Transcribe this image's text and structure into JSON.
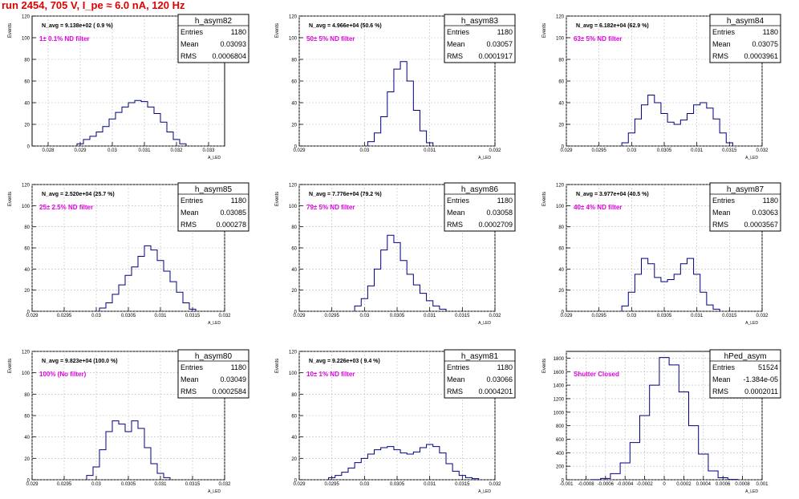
{
  "page_title": "run 2454,   705 V, I_pe ≈ 6.0 nA, 120 Hz",
  "chart_data": [
    {
      "type": "histogram",
      "name": "h_asym82",
      "ylabel": "Events",
      "xlabel": "A_LED",
      "n_avg": "N_avg = 9.138e+02 ( 0.9 %)",
      "filter": "1± 0.1% ND filter",
      "stats": {
        "Entries": "1180",
        "Mean": "0.03093",
        "RMS": "0.0006804"
      },
      "xlim": [
        0.0275,
        0.0335
      ],
      "ylim": [
        0,
        120
      ],
      "xticks": [
        "0.028",
        "0.029",
        "0.03",
        "0.031",
        "0.032",
        "0.033"
      ],
      "yticks": [
        "0",
        "20",
        "40",
        "60",
        "80",
        "100",
        "120"
      ],
      "x": [
        0.029,
        0.0292,
        0.0294,
        0.0296,
        0.0298,
        0.03,
        0.0302,
        0.0304,
        0.0306,
        0.0308,
        0.031,
        0.0312,
        0.0314,
        0.0316,
        0.0318,
        0.032,
        0.0322
      ],
      "values": [
        2,
        6,
        9,
        13,
        18,
        25,
        31,
        36,
        40,
        42,
        41,
        36,
        30,
        22,
        13,
        6,
        2
      ]
    },
    {
      "type": "histogram",
      "name": "h_asym83",
      "ylabel": "Events",
      "xlabel": "A_LED",
      "n_avg": "N_avg = 4.966e+04 (50.6 %)",
      "filter": "50± 5% ND filter",
      "stats": {
        "Entries": "1180",
        "Mean": "0.03057",
        "RMS": "0.0001917"
      },
      "xlim": [
        0.029,
        0.032
      ],
      "ylim": [
        0,
        120
      ],
      "xticks": [
        "0.029",
        "0.03",
        "0.031",
        "0.032"
      ],
      "yticks": [
        "0",
        "20",
        "40",
        "60",
        "80",
        "100",
        "120"
      ],
      "x": [
        0.0301,
        0.0302,
        0.0303,
        0.0304,
        0.0305,
        0.0306,
        0.0307,
        0.0308,
        0.0309,
        0.031
      ],
      "values": [
        4,
        12,
        27,
        50,
        71,
        78,
        60,
        33,
        14,
        3
      ]
    },
    {
      "type": "histogram",
      "name": "h_asym84",
      "ylabel": "Events",
      "xlabel": "A_LED",
      "n_avg": "N_avg = 6.182e+04 (62.9 %)",
      "filter": "63± 5% ND filter",
      "stats": {
        "Entries": "1180",
        "Mean": "0.03075",
        "RMS": "0.0003961"
      },
      "xlim": [
        0.029,
        0.032
      ],
      "ylim": [
        0,
        120
      ],
      "xticks": [
        "0.029",
        "0.0295",
        "0.03",
        "0.0305",
        "0.031",
        "0.0315",
        "0.032"
      ],
      "yticks": [
        "0",
        "20",
        "40",
        "60",
        "80",
        "100",
        "120"
      ],
      "x": [
        0.0299,
        0.03,
        0.0301,
        0.0302,
        0.0303,
        0.0304,
        0.0305,
        0.0306,
        0.0307,
        0.0308,
        0.0309,
        0.031,
        0.0311,
        0.0312,
        0.0313,
        0.0314,
        0.0315
      ],
      "values": [
        3,
        12,
        25,
        38,
        47,
        40,
        30,
        22,
        20,
        24,
        30,
        38,
        40,
        35,
        25,
        12,
        3
      ]
    },
    {
      "type": "histogram",
      "name": "h_asym85",
      "ylabel": "Events",
      "xlabel": "A_LED",
      "n_avg": "N_avg = 2.520e+04 (25.7 %)",
      "filter": "25± 2.5% ND filter",
      "stats": {
        "Entries": "1180",
        "Mean": "0.03085",
        "RMS": "0.000278"
      },
      "xlim": [
        0.029,
        0.032
      ],
      "ylim": [
        0,
        120
      ],
      "xticks": [
        "0.029",
        "0.0295",
        "0.03",
        "0.0305",
        "0.031",
        "0.0315",
        "0.032"
      ],
      "yticks": [
        "0",
        "20",
        "40",
        "60",
        "80",
        "100",
        "120"
      ],
      "x": [
        0.0301,
        0.0302,
        0.0303,
        0.0304,
        0.0305,
        0.0306,
        0.0307,
        0.0308,
        0.0309,
        0.031,
        0.0311,
        0.0312,
        0.0313,
        0.0314,
        0.0315
      ],
      "values": [
        3,
        8,
        16,
        25,
        34,
        42,
        52,
        62,
        58,
        48,
        38,
        28,
        18,
        8,
        2
      ]
    },
    {
      "type": "histogram",
      "name": "h_asym86",
      "ylabel": "Events",
      "xlabel": "A_LED",
      "n_avg": "N_avg = 7.776e+04 (79.2 %)",
      "filter": "79± 5% ND filter",
      "stats": {
        "Entries": "1180",
        "Mean": "0.03058",
        "RMS": "0.0002709"
      },
      "xlim": [
        0.029,
        0.032
      ],
      "ylim": [
        0,
        120
      ],
      "xticks": [
        "0.029",
        "0.0295",
        "0.03",
        "0.0305",
        "0.031",
        "0.0315",
        "0.032"
      ],
      "yticks": [
        "0",
        "20",
        "40",
        "60",
        "80",
        "100",
        "120"
      ],
      "x": [
        0.0299,
        0.03,
        0.0301,
        0.0302,
        0.0303,
        0.0304,
        0.0305,
        0.0306,
        0.0307,
        0.0308,
        0.0309,
        0.031,
        0.0311,
        0.0312
      ],
      "values": [
        5,
        12,
        24,
        40,
        58,
        72,
        65,
        48,
        35,
        25,
        17,
        10,
        5,
        2
      ]
    },
    {
      "type": "histogram",
      "name": "h_asym87",
      "ylabel": "Events",
      "xlabel": "A_LED",
      "n_avg": "N_avg = 3.977e+04 (40.5 %)",
      "filter": "40± 4% ND filter",
      "stats": {
        "Entries": "1180",
        "Mean": "0.03063",
        "RMS": "0.0003567"
      },
      "xlim": [
        0.029,
        0.032
      ],
      "ylim": [
        0,
        120
      ],
      "xticks": [
        "0.029",
        "0.0295",
        "0.03",
        "0.0305",
        "0.031",
        "0.0315",
        "0.032"
      ],
      "yticks": [
        "0",
        "20",
        "40",
        "60",
        "80",
        "100",
        "120"
      ],
      "x": [
        0.0299,
        0.03,
        0.0301,
        0.0302,
        0.0303,
        0.0304,
        0.0305,
        0.0306,
        0.0307,
        0.0308,
        0.0309,
        0.031,
        0.0311,
        0.0312,
        0.0313
      ],
      "values": [
        5,
        18,
        35,
        50,
        45,
        32,
        28,
        30,
        35,
        45,
        50,
        35,
        18,
        6,
        2
      ]
    },
    {
      "type": "histogram",
      "name": "h_asym80",
      "ylabel": "Events",
      "xlabel": "A_LED",
      "n_avg": "N_avg = 9.823e+04 (100.0 %)",
      "filter": "100% (No filter)",
      "stats": {
        "Entries": "1180",
        "Mean": "0.03049",
        "RMS": "0.0002584"
      },
      "xlim": [
        0.029,
        0.032
      ],
      "ylim": [
        0,
        120
      ],
      "xticks": [
        "0.029",
        "0.0295",
        "0.03",
        "0.0305",
        "0.031",
        "0.0315",
        "0.032"
      ],
      "yticks": [
        "0",
        "20",
        "40",
        "60",
        "80",
        "100",
        "120"
      ],
      "x": [
        0.0299,
        0.03,
        0.0301,
        0.0302,
        0.0303,
        0.0304,
        0.0305,
        0.0306,
        0.0307,
        0.0308,
        0.0309,
        0.031,
        0.0311
      ],
      "values": [
        4,
        12,
        28,
        45,
        55,
        52,
        45,
        55,
        48,
        30,
        15,
        6,
        2
      ]
    },
    {
      "type": "histogram",
      "name": "h_asym81",
      "ylabel": "Events",
      "xlabel": "A_LED",
      "n_avg": "N_avg = 9.226e+03 ( 9.4 %)",
      "filter": "10± 1% ND filter",
      "stats": {
        "Entries": "1180",
        "Mean": "0.03066",
        "RMS": "0.0004201"
      },
      "xlim": [
        0.029,
        0.032
      ],
      "ylim": [
        0,
        120
      ],
      "xticks": [
        "0.029",
        "0.0295",
        "0.03",
        "0.0305",
        "0.031",
        "0.0315",
        "0.032"
      ],
      "yticks": [
        "0",
        "20",
        "40",
        "60",
        "80",
        "100",
        "120"
      ],
      "x": [
        0.0295,
        0.0296,
        0.0297,
        0.0298,
        0.0299,
        0.03,
        0.0301,
        0.0302,
        0.0303,
        0.0304,
        0.0305,
        0.0306,
        0.0307,
        0.0308,
        0.0309,
        0.031,
        0.0311,
        0.0312,
        0.0313,
        0.0314,
        0.0315,
        0.0316,
        0.0317
      ],
      "values": [
        2,
        4,
        7,
        11,
        16,
        20,
        24,
        28,
        30,
        31,
        28,
        25,
        24,
        26,
        30,
        33,
        31,
        25,
        15,
        8,
        4,
        2,
        1
      ]
    },
    {
      "type": "histogram",
      "name": "hPed_asym",
      "ylabel": "Events",
      "xlabel": "A_LED",
      "n_avg": "",
      "filter": "Shutter Closed",
      "stats": {
        "Entries": "51524",
        "Mean": "-1.384e-05",
        "RMS": "0.0002011"
      },
      "xlim": [
        -0.001,
        0.001
      ],
      "ylim": [
        0,
        1900
      ],
      "xticks": [
        "-0.001",
        "-0.0008",
        "-0.0006",
        "-0.0004",
        "-0.0002",
        "0",
        "0.0002",
        "0.0004",
        "0.0006",
        "0.0008",
        "0.001"
      ],
      "yticks": [
        "0",
        "200",
        "400",
        "600",
        "800",
        "1000",
        "1200",
        "1400",
        "1600",
        "1800"
      ],
      "x": [
        -0.0007,
        -0.0006,
        -0.0005,
        -0.0004,
        -0.0003,
        -0.0002,
        -0.0001,
        0,
        0.0001,
        0.0002,
        0.0003,
        0.0004,
        0.0005,
        0.0006,
        0.0007
      ],
      "values": [
        2,
        20,
        90,
        250,
        550,
        950,
        1400,
        1810,
        1700,
        1300,
        800,
        380,
        130,
        30,
        5
      ]
    }
  ]
}
